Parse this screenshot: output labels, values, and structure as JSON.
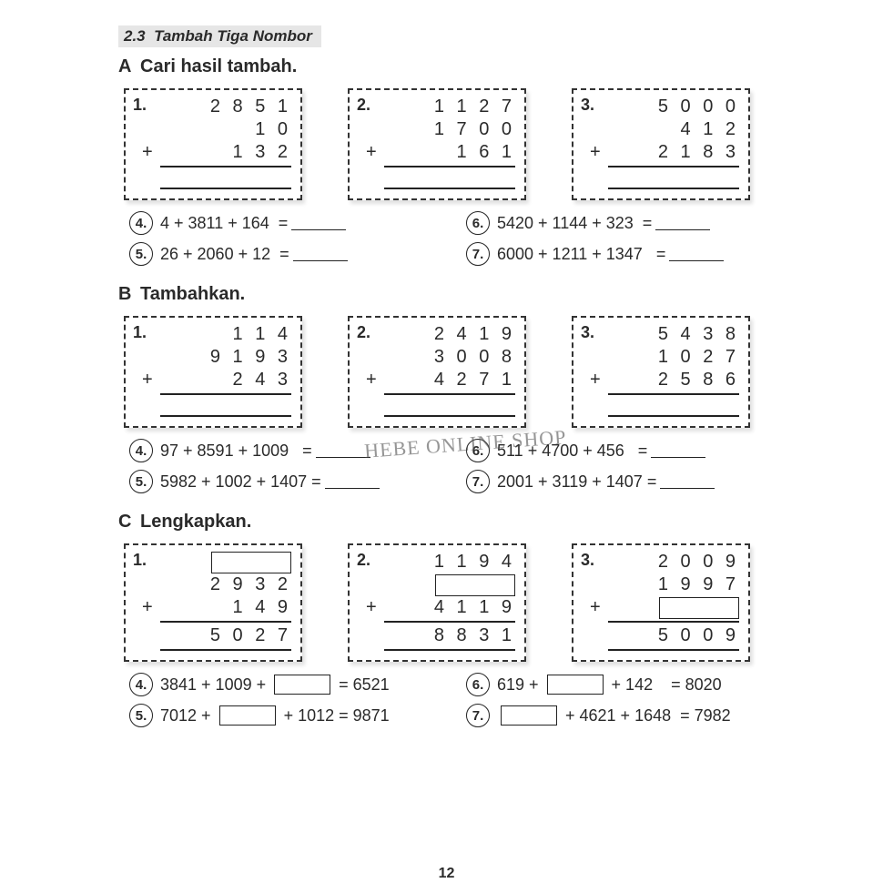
{
  "header": {
    "number": "2.3",
    "title": "Tambah Tiga Nombor"
  },
  "page_number": "12",
  "watermark": "HEBE ONLINE SHOP",
  "sections": {
    "A": {
      "title": "Cari hasil tambah.",
      "boxes": [
        {
          "n": "1.",
          "rows": [
            "2 8 5 1",
            "1 0",
            "1 3 2"
          ],
          "plus_on": 2,
          "answer_blank": true
        },
        {
          "n": "2.",
          "rows": [
            "1 1 2 7",
            "1 7 0 0",
            "1 6 1"
          ],
          "plus_on": 2,
          "answer_blank": true
        },
        {
          "n": "3.",
          "rows": [
            "5 0 0 0",
            "4 1 2",
            "2 1 8 3"
          ],
          "plus_on": 2,
          "answer_blank": true
        }
      ],
      "inline": [
        {
          "n": "4.",
          "expr": "4 + 3811 + 164  =",
          "type": "line"
        },
        {
          "n": "6.",
          "expr": "5420 + 1144 + 323  =",
          "type": "line"
        },
        {
          "n": "5.",
          "expr": "26 + 2060 + 12  =",
          "type": "line"
        },
        {
          "n": "7.",
          "expr": "6000 + 1211 + 1347   =",
          "type": "line"
        }
      ]
    },
    "B": {
      "title": "Tambahkan.",
      "boxes": [
        {
          "n": "1.",
          "rows": [
            "1 1 4",
            "9 1 9 3",
            "2 4 3"
          ],
          "plus_on": 2,
          "answer_blank": true
        },
        {
          "n": "2.",
          "rows": [
            "2 4 1 9",
            "3 0 0 8",
            "4 2 7 1"
          ],
          "plus_on": 2,
          "answer_blank": true
        },
        {
          "n": "3.",
          "rows": [
            "5 4 3 8",
            "1 0 2 7",
            "2 5 8 6"
          ],
          "plus_on": 2,
          "answer_blank": true
        }
      ],
      "inline": [
        {
          "n": "4.",
          "expr": "97 + 8591 + 1009   =",
          "type": "line"
        },
        {
          "n": "6.",
          "expr": "511 + 4700 + 456   =",
          "type": "line"
        },
        {
          "n": "5.",
          "expr": "5982 + 1002 + 1407 =",
          "type": "line"
        },
        {
          "n": "7.",
          "expr": "2001 + 3119 + 1407 =",
          "type": "line"
        }
      ]
    },
    "C": {
      "title": "Lengkapkan.",
      "boxes": [
        {
          "n": "1.",
          "rows": [
            "[slot]",
            "2 9 3 2",
            "1 4 9"
          ],
          "plus_on": 2,
          "result": "5 0 2 7"
        },
        {
          "n": "2.",
          "rows": [
            "1 1 9 4",
            "[slot]",
            "4 1 1 9"
          ],
          "plus_on": 2,
          "result": "8 8 3 1"
        },
        {
          "n": "3.",
          "rows": [
            "2 0 0 9",
            "1 9 9 7",
            "[slot]"
          ],
          "plus_on": 2,
          "result": "5 0 0 9"
        }
      ],
      "inline": [
        {
          "n": "4.",
          "pre": "3841 + 1009 + ",
          "post": " = 6521",
          "type": "box"
        },
        {
          "n": "6.",
          "pre": "619 + ",
          "post": " + 142    = 8020",
          "type": "box"
        },
        {
          "n": "5.",
          "pre": "7012 + ",
          "post": " + 1012 = 9871",
          "type": "box"
        },
        {
          "n": "7.",
          "pre": "",
          "post": " + 4621 + 1648  = 7982",
          "type": "box"
        }
      ]
    }
  }
}
